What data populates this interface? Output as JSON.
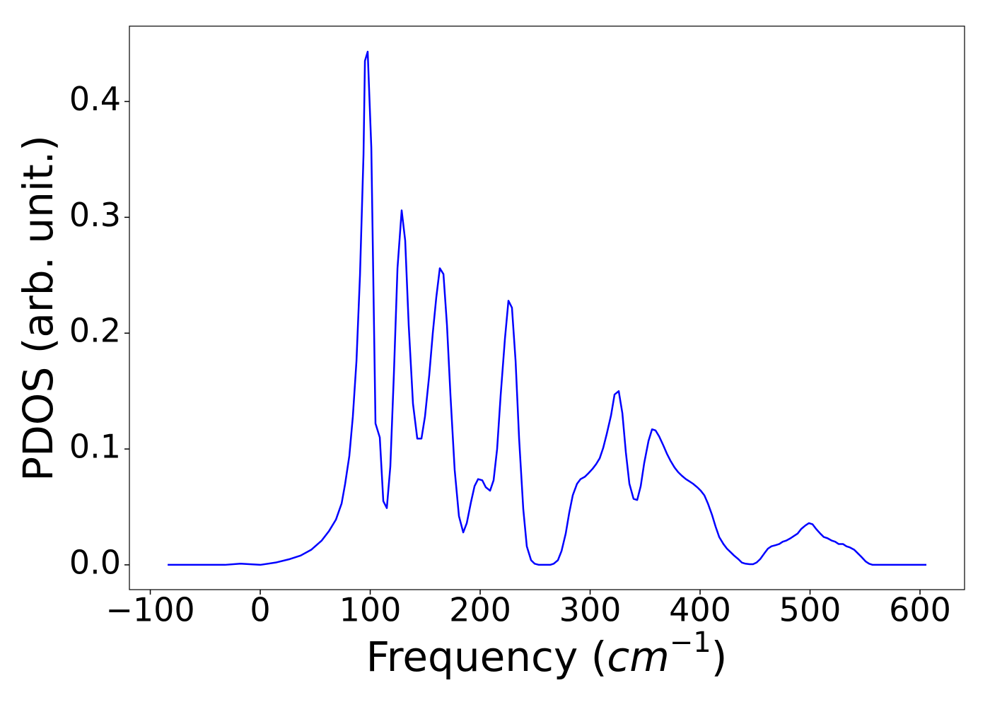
{
  "chart_data": {
    "type": "line",
    "xlabel_parts": [
      "Frequency (",
      "cm",
      "−1",
      ")"
    ],
    "ylabel": "PDOS (arb. unit.)",
    "xlim": [
      -119,
      640.5
    ],
    "ylim": [
      -0.0214,
      0.465
    ],
    "xticks": [
      {
        "value": -100,
        "label": "−100"
      },
      0,
      100,
      200,
      300,
      400,
      500,
      600
    ],
    "yticks": [
      {
        "value": 0,
        "label": "0.0"
      },
      0.1,
      0.2,
      0.3,
      0.4
    ],
    "series": [
      {
        "color": "#0000ff",
        "x": [
          -84.2,
          -32.2,
          -18,
          0,
          14.1,
          27,
          36.7,
          46.3,
          55.9,
          62.4,
          68.8,
          74,
          77.2,
          81,
          84.2,
          87.5,
          90.7,
          93.9,
          95.2,
          97.7,
          101,
          104.8,
          108.7,
          111.9,
          115.1,
          118.3,
          121.5,
          124.8,
          128.6,
          131.8,
          135,
          138.9,
          142.8,
          146.6,
          149.8,
          153.7,
          156.9,
          160.1,
          163.3,
          166.6,
          169.8,
          173,
          176.8,
          180.7,
          184.6,
          187.8,
          191.6,
          194.9,
          198.1,
          201.9,
          205.1,
          209,
          212.2,
          215.4,
          218.6,
          222.5,
          225.7,
          228.9,
          232.2,
          235.4,
          239.2,
          242.4,
          246.3,
          249.5,
          253.4,
          263.7,
          266.9,
          270.7,
          274,
          277.8,
          281,
          284.2,
          288.1,
          291.3,
          295.2,
          298.4,
          302.3,
          305.5,
          308.7,
          311.9,
          315.1,
          319,
          322.2,
          326,
          329.3,
          332.5,
          335.7,
          339.5,
          342.8,
          346,
          349.2,
          353.1,
          356.3,
          359.5,
          362.7,
          366.6,
          369.8,
          373,
          376.8,
          380.1,
          383.3,
          387.1,
          390.4,
          393.6,
          397.4,
          400.6,
          403.9,
          407.1,
          410.9,
          414.1,
          417.4,
          421.2,
          424.4,
          427.7,
          430.9,
          434.7,
          437.9,
          441.2,
          445,
          448.2,
          451.4,
          454.7,
          458.5,
          461.7,
          464.9,
          468.8,
          472,
          475.2,
          478.5,
          482.3,
          485.5,
          488.7,
          492,
          495.8,
          499,
          502.3,
          505.5,
          509.3,
          512.5,
          515.8,
          519.6,
          522.8,
          526,
          529.9,
          533.1,
          536.3,
          540.2,
          543.4,
          546.6,
          550.5,
          553.7,
          556.9,
          560.8,
          605.8
        ],
        "values": [
          0,
          0,
          0.001,
          0,
          0.002,
          0.005,
          0.008,
          0.013,
          0.021,
          0.029,
          0.039,
          0.053,
          0.07,
          0.094,
          0.128,
          0.176,
          0.25,
          0.354,
          0.435,
          0.443,
          0.36,
          0.122,
          0.11,
          0.055,
          0.049,
          0.085,
          0.164,
          0.256,
          0.306,
          0.28,
          0.207,
          0.139,
          0.109,
          0.109,
          0.128,
          0.164,
          0.2,
          0.231,
          0.256,
          0.251,
          0.207,
          0.146,
          0.082,
          0.042,
          0.028,
          0.036,
          0.054,
          0.068,
          0.074,
          0.073,
          0.067,
          0.064,
          0.073,
          0.1,
          0.146,
          0.195,
          0.228,
          0.222,
          0.176,
          0.109,
          0.048,
          0.016,
          0.004,
          0.001,
          0,
          0,
          0.001,
          0.004,
          0.012,
          0.027,
          0.045,
          0.06,
          0.07,
          0.074,
          0.076,
          0.079,
          0.083,
          0.087,
          0.092,
          0.101,
          0.113,
          0.129,
          0.147,
          0.15,
          0.131,
          0.097,
          0.07,
          0.057,
          0.056,
          0.068,
          0.088,
          0.107,
          0.117,
          0.116,
          0.111,
          0.103,
          0.096,
          0.09,
          0.084,
          0.08,
          0.077,
          0.074,
          0.072,
          0.07,
          0.067,
          0.064,
          0.06,
          0.053,
          0.043,
          0.033,
          0.024,
          0.018,
          0.014,
          0.011,
          0.008,
          0.005,
          0.002,
          0.001,
          0.0006,
          0.0006,
          0.002,
          0.005,
          0.01,
          0.014,
          0.016,
          0.017,
          0.018,
          0.02,
          0.021,
          0.023,
          0.025,
          0.027,
          0.031,
          0.034,
          0.036,
          0.035,
          0.031,
          0.027,
          0.024,
          0.023,
          0.021,
          0.02,
          0.018,
          0.018,
          0.016,
          0.015,
          0.013,
          0.01,
          0.007,
          0.003,
          0.001,
          0,
          0,
          0
        ]
      }
    ]
  }
}
